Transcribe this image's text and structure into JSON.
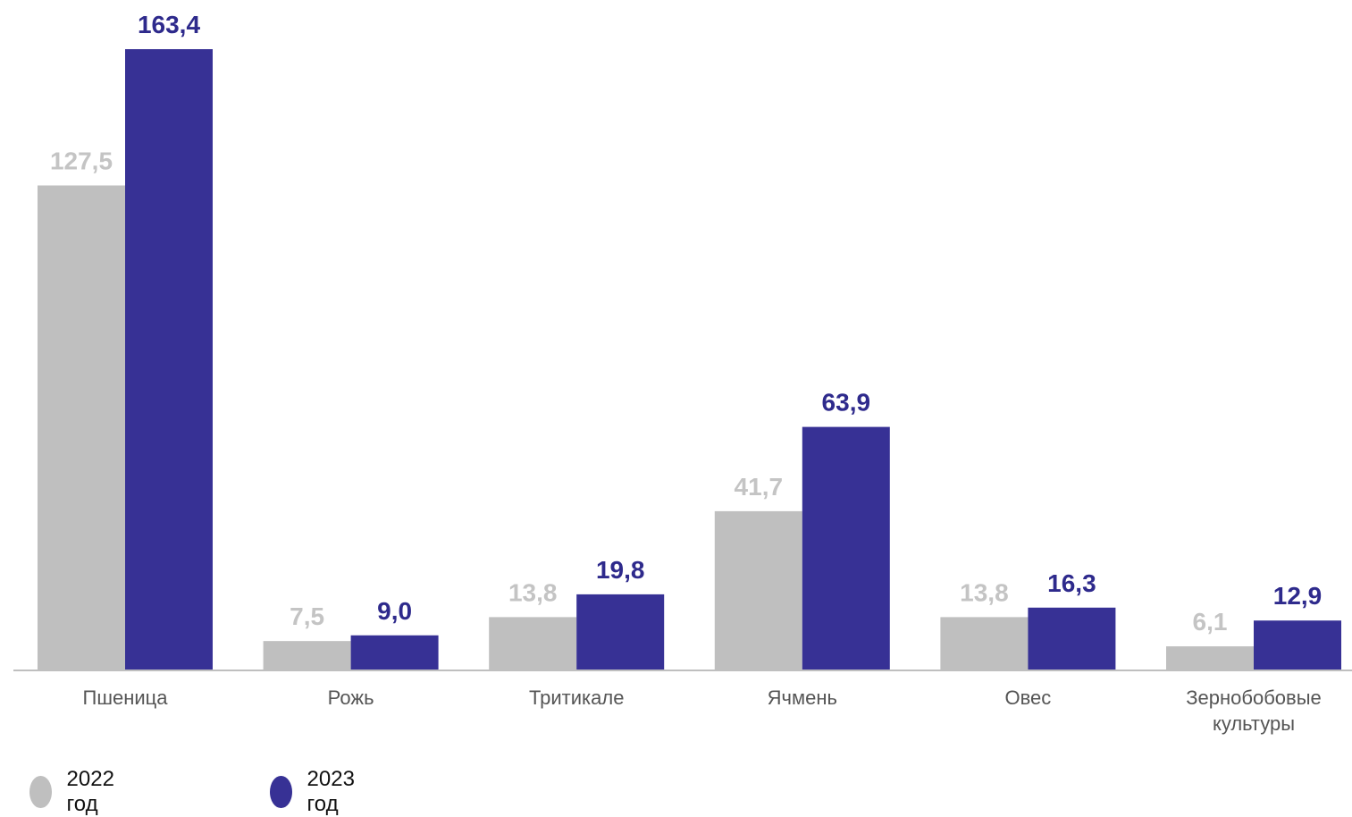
{
  "chart_data": {
    "type": "bar",
    "categories": [
      "Пшеница",
      "Рожь",
      "Тритикале",
      "Ячмень",
      "Овес",
      "Зернобобовые\nкультуры"
    ],
    "series": [
      {
        "name": "2022 год",
        "color": "#bfbfbf",
        "label_color": "#c4c4c4",
        "values": [
          127.5,
          7.5,
          13.8,
          41.7,
          13.8,
          6.1
        ],
        "labels": [
          "127,5",
          "7,5",
          "13,8",
          "41,7",
          "13,8",
          "6,1"
        ]
      },
      {
        "name": "2023 год",
        "color": "#373195",
        "label_color": "#2e2a8c",
        "values": [
          163.4,
          9.0,
          19.8,
          63.9,
          16.3,
          12.9
        ],
        "labels": [
          "163,4",
          "9,0",
          "19,8",
          "63,9",
          "16,3",
          "12,9"
        ]
      }
    ],
    "ylim": [
      0,
      163.4
    ],
    "grid": false,
    "legend_position": "bottom-left",
    "axis_color": "#bfbfbf"
  }
}
